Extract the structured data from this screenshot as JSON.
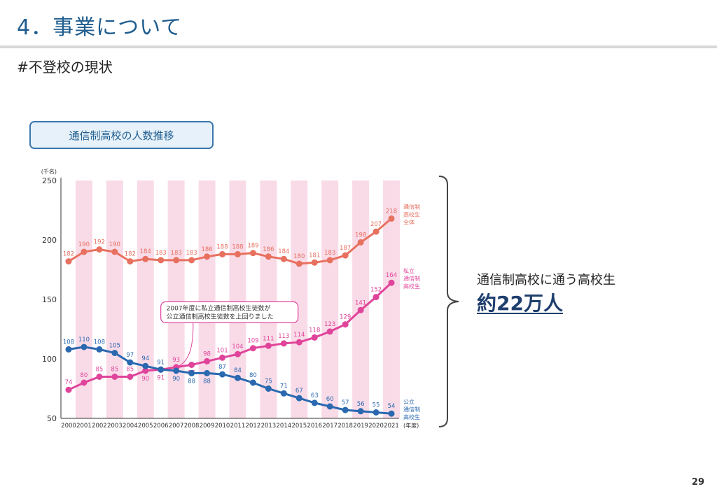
{
  "slide": {
    "title": "4．事業について",
    "subtitle": "#不登校の現状",
    "chart_label": "通信制高校の人数推移",
    "callout_line1": "通信制高校に通う高校生",
    "callout_line2": "約22万人",
    "page_number": "29"
  },
  "colors": {
    "total": "#e8705f",
    "private": "#e0449a",
    "public": "#2a69b0",
    "stripe": "#f9dbe8",
    "accent": "#1f5d8f"
  },
  "chart_data": {
    "type": "line",
    "unit_label": "(千名)",
    "x_unit_label": "(年度)",
    "ylim": [
      50,
      250
    ],
    "yticks": [
      50,
      100,
      150,
      200,
      250
    ],
    "x": [
      "2000",
      "2001",
      "2002",
      "2003",
      "2004",
      "2005",
      "2006",
      "2007",
      "2008",
      "2009",
      "2010",
      "2011",
      "2012",
      "2013",
      "2014",
      "2015",
      "2016",
      "2017",
      "2018",
      "2019",
      "2020",
      "2021"
    ],
    "series": [
      {
        "key": "total",
        "name": "通信制高校生全体",
        "name_lines": [
          "通信制",
          "高校生",
          "全体"
        ],
        "values": [
          182,
          190,
          192,
          190,
          182,
          184,
          183,
          183,
          183,
          186,
          188,
          188,
          189,
          186,
          184,
          180,
          181,
          183,
          187,
          198,
          207,
          218
        ]
      },
      {
        "key": "private",
        "name": "私立通信制高校生",
        "name_lines": [
          "私立",
          "通信制",
          "高校生"
        ],
        "values": [
          74,
          80,
          85,
          85,
          85,
          90,
          91,
          93,
          95,
          98,
          101,
          104,
          109,
          111,
          113,
          114,
          118,
          123,
          129,
          141,
          152,
          164
        ]
      },
      {
        "key": "public",
        "name": "公立通信制高校生",
        "name_lines": [
          "公立",
          "通信制",
          "高校生"
        ],
        "values": [
          108,
          110,
          108,
          105,
          97,
          94,
          91,
          90,
          88,
          88,
          87,
          84,
          80,
          75,
          71,
          67,
          63,
          60,
          57,
          56,
          55,
          54
        ]
      }
    ],
    "annotation": {
      "lines": [
        "2007年度に私立通信制高校生徒数が",
        "公立通信制高校生徒数を上回りました"
      ],
      "x": "2007"
    },
    "grid": false,
    "legend": "right"
  }
}
